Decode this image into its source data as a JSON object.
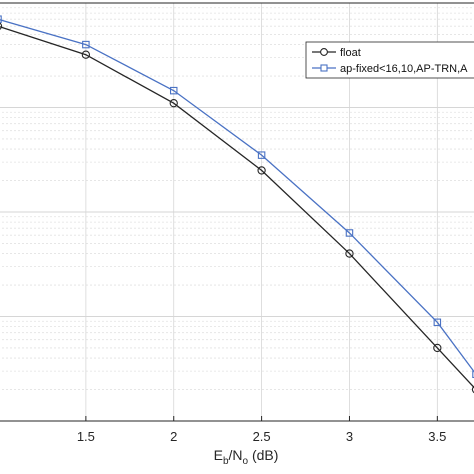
{
  "chart_data": {
    "type": "line",
    "title": "",
    "xlabel": {
      "main": "E",
      "sub1": "b",
      "mid": "/N",
      "sub2": "o",
      "rest": " (dB)"
    },
    "ylabel": "",
    "xlim": [
      1.0,
      3.72
    ],
    "x_ticks": [
      1.5,
      2,
      2.5,
      3,
      3.5
    ],
    "x_tick_labels": [
      "1.5",
      "2",
      "2.5",
      "3",
      "3.5"
    ],
    "y_scale": "log",
    "ylim": [
      1e-07,
      0.001
    ],
    "grid": true,
    "legend_position": "top-right",
    "series": [
      {
        "name": "float",
        "color": "#262626",
        "marker": "circle",
        "x": [
          1.0,
          1.5,
          2.0,
          2.5,
          3.0,
          3.5,
          3.72
        ],
        "y": [
          0.0006,
          0.00032,
          0.00011,
          2.5e-05,
          4e-06,
          5e-07,
          2e-07
        ]
      },
      {
        "name": "ap-fixed<16,10,AP-TRN,A",
        "color": "#4a72c4",
        "marker": "square",
        "x": [
          1.0,
          1.5,
          2.0,
          2.5,
          3.0,
          3.5,
          3.72
        ],
        "y": [
          0.0007,
          0.0004,
          0.000145,
          3.5e-05,
          6.3e-06,
          8.8e-07,
          2.8e-07
        ]
      }
    ]
  }
}
